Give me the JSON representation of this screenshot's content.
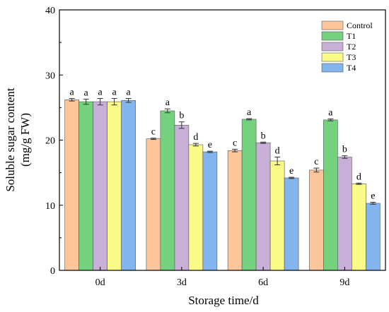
{
  "chart_data": {
    "type": "bar",
    "xlabel": "Storage time/d",
    "ylabel_lines": [
      "Soluble sugar content",
      "(mg/g FW)"
    ],
    "ylim": [
      0,
      40
    ],
    "yticks": [
      0,
      10,
      20,
      30,
      40
    ],
    "categories": [
      "0d",
      "3d",
      "6d",
      "9d"
    ],
    "legend_position": "top-right",
    "grid": false,
    "series": [
      {
        "name": "Control",
        "color": "#fcc59a",
        "values": [
          26.2,
          20.2,
          18.4,
          15.4
        ],
        "errors": [
          0.2,
          0.1,
          0.2,
          0.3
        ],
        "labels": [
          "a",
          "c",
          "c",
          "c"
        ]
      },
      {
        "name": "T1",
        "color": "#74d27f",
        "values": [
          25.9,
          24.5,
          23.2,
          23.1
        ],
        "errors": [
          0.4,
          0.3,
          0.1,
          0.15
        ],
        "labels": [
          "a",
          "a",
          "a",
          "a"
        ]
      },
      {
        "name": "T2",
        "color": "#c7afd8",
        "values": [
          25.9,
          22.3,
          19.6,
          17.4
        ],
        "errors": [
          0.5,
          0.5,
          0.1,
          0.2
        ],
        "labels": [
          "a",
          "b",
          "b",
          "b"
        ]
      },
      {
        "name": "T3",
        "color": "#fbfa86",
        "values": [
          25.9,
          19.3,
          16.8,
          13.3
        ],
        "errors": [
          0.5,
          0.2,
          0.6,
          0.1
        ],
        "labels": [
          "a",
          "d",
          "d",
          "d"
        ]
      },
      {
        "name": "T4",
        "color": "#82b4ee",
        "values": [
          26.1,
          18.2,
          14.2,
          10.3
        ],
        "errors": [
          0.3,
          0.1,
          0.1,
          0.15
        ],
        "labels": [
          "a",
          "e",
          "e",
          "e"
        ]
      }
    ]
  }
}
